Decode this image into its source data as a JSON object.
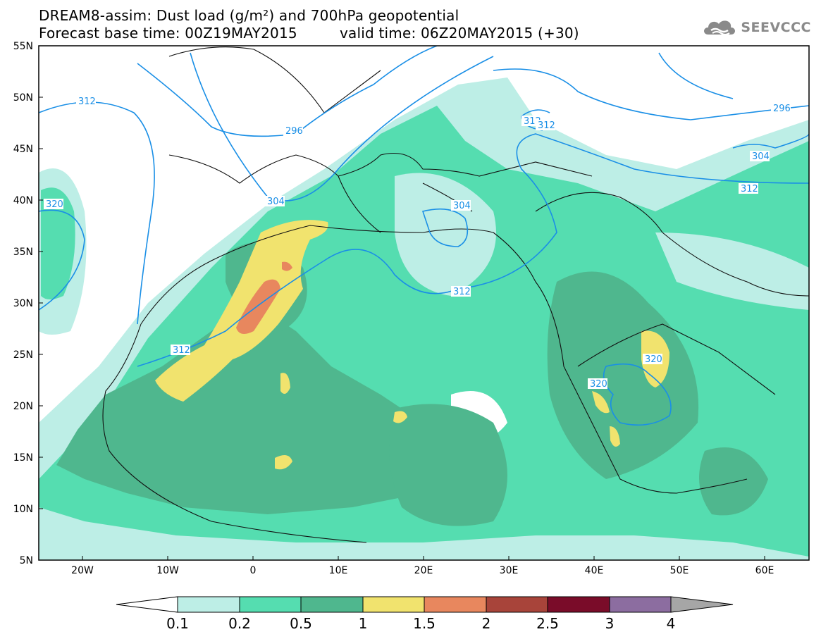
{
  "header": {
    "title_line1": "DREAM8-assim: Dust load (g/m²) and 700hPa geopotential",
    "title_line2_left": "Forecast base time: 00Z19MAY2015",
    "title_line2_right": "valid time: 06Z20MAY2015 (+30)",
    "logo_text": "SEEVCCC",
    "logo_icon": "cloud-icon"
  },
  "map": {
    "lat_labels": [
      "55N",
      "50N",
      "45N",
      "40N",
      "35N",
      "30N",
      "25N",
      "20N",
      "15N",
      "10N",
      "5N"
    ],
    "lon_labels": [
      "20W",
      "10W",
      "0",
      "10E",
      "20E",
      "30E",
      "40E",
      "50E",
      "60E"
    ],
    "contour_labels": [
      "312",
      "296",
      "312",
      "312",
      "296",
      "304",
      "304",
      "304",
      "312",
      "320",
      "312",
      "312",
      "320",
      "320"
    ]
  },
  "colorbar": {
    "labels": [
      "0.1",
      "0.2",
      "0.5",
      "1",
      "1.5",
      "2",
      "2.5",
      "3",
      "4"
    ],
    "colors": [
      "#ffffff",
      "#bdeee6",
      "#55ddb0",
      "#4fb78e",
      "#f1e36e",
      "#e8875e",
      "#a8443a",
      "#7a0c29",
      "#8c6da0",
      "#a6a6a6"
    ]
  }
}
